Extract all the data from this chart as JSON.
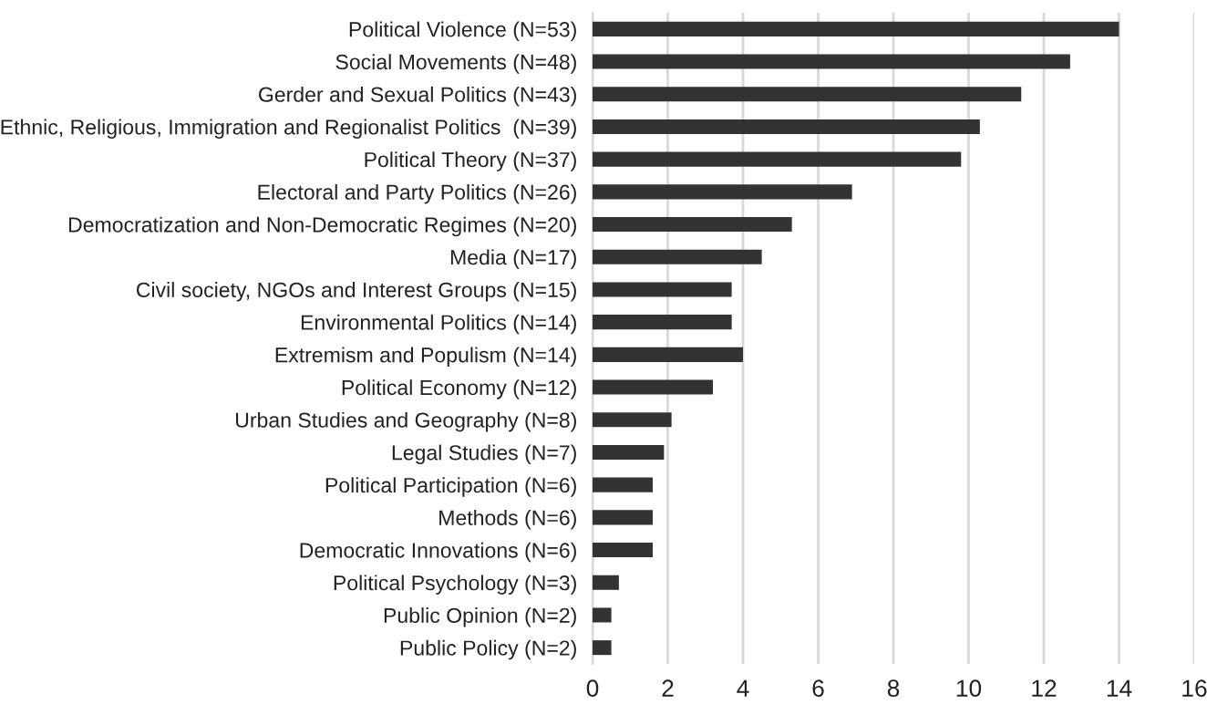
{
  "chart_data": {
    "type": "bar",
    "orientation": "horizontal",
    "categories": [
      "Political Violence (N=53)",
      "Social Movements (N=48)",
      "Gerder and Sexual Politics (N=43)",
      "Ethnic, Religious, Immigration and Regionalist Politics  (N=39)",
      "Political Theory (N=37)",
      "Electoral and Party Politics (N=26)",
      "Democratization and Non-Democratic Regimes (N=20)",
      "Media (N=17)",
      "Civil society, NGOs and Interest Groups (N=15)",
      "Environmental Politics (N=14)",
      "Extremism and Populism (N=14)",
      "Political Economy (N=12)",
      "Urban Studies and Geography (N=8)",
      "Legal Studies (N=7)",
      "Political Participation (N=6)",
      "Methods (N=6)",
      "Democratic Innovations (N=6)",
      "Political Psychology (N=3)",
      "Public Opinion (N=2)",
      "Public Policy (N=2)"
    ],
    "values": [
      14.0,
      12.7,
      11.4,
      10.3,
      9.8,
      6.9,
      5.3,
      4.5,
      3.7,
      3.7,
      4.0,
      3.2,
      2.1,
      1.9,
      1.6,
      1.6,
      1.6,
      0.7,
      0.5,
      0.5
    ],
    "color": "#333333",
    "xlim": [
      0,
      16
    ],
    "xticks": [
      0,
      2,
      4,
      6,
      8,
      10,
      12,
      14,
      16
    ],
    "grid": "x"
  }
}
